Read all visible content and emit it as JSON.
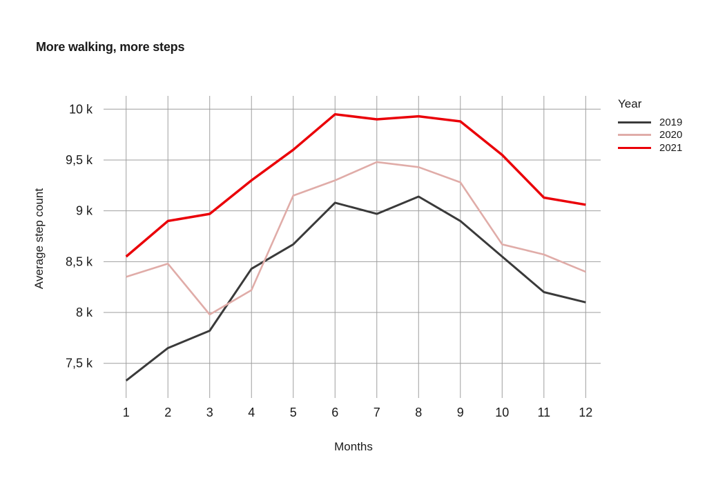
{
  "title": "More walking, more steps",
  "colors": {
    "background": "#ffffff",
    "grid": "#9e9e9e",
    "text": "#1a1a1a",
    "series_2019": "#3a3a3a",
    "series_2020": "#e0aca8",
    "series_2021": "#ea0008"
  },
  "chart_data": {
    "type": "line",
    "title": "More walking, more steps",
    "xlabel": "Months",
    "ylabel": "Average step count",
    "legend_title": "Year",
    "legend_position": "top-right",
    "grid": true,
    "x": [
      1,
      2,
      3,
      4,
      5,
      6,
      7,
      8,
      9,
      10,
      11,
      12
    ],
    "x_tick_labels": [
      "1",
      "2",
      "3",
      "4",
      "5",
      "6",
      "7",
      "8",
      "9",
      "10",
      "11",
      "12"
    ],
    "y_ticks": [
      {
        "value": 10,
        "label": "10 k"
      },
      {
        "value": 9.5,
        "label": "9,5 k"
      },
      {
        "value": 9,
        "label": "9 k"
      },
      {
        "value": 8.5,
        "label": "8,5 k"
      },
      {
        "value": 8,
        "label": "8 k"
      },
      {
        "value": 7.5,
        "label": "7,5 k"
      }
    ],
    "y_unit": "k",
    "ylim": [
      7.15,
      10.15
    ],
    "series": [
      {
        "name": "2019",
        "color": "#3a3a3a",
        "values": [
          7.33,
          7.65,
          7.82,
          8.43,
          8.67,
          9.08,
          8.97,
          9.14,
          8.9,
          8.55,
          8.2,
          8.1
        ]
      },
      {
        "name": "2020",
        "color": "#e0aca8",
        "values": [
          8.35,
          8.48,
          7.98,
          8.22,
          9.15,
          9.3,
          9.48,
          9.43,
          9.28,
          8.67,
          8.57,
          8.4
        ]
      },
      {
        "name": "2021",
        "color": "#ea0008",
        "values": [
          8.55,
          8.9,
          8.97,
          9.3,
          9.6,
          9.95,
          9.9,
          9.93,
          9.88,
          9.55,
          9.13,
          9.06
        ]
      }
    ]
  }
}
